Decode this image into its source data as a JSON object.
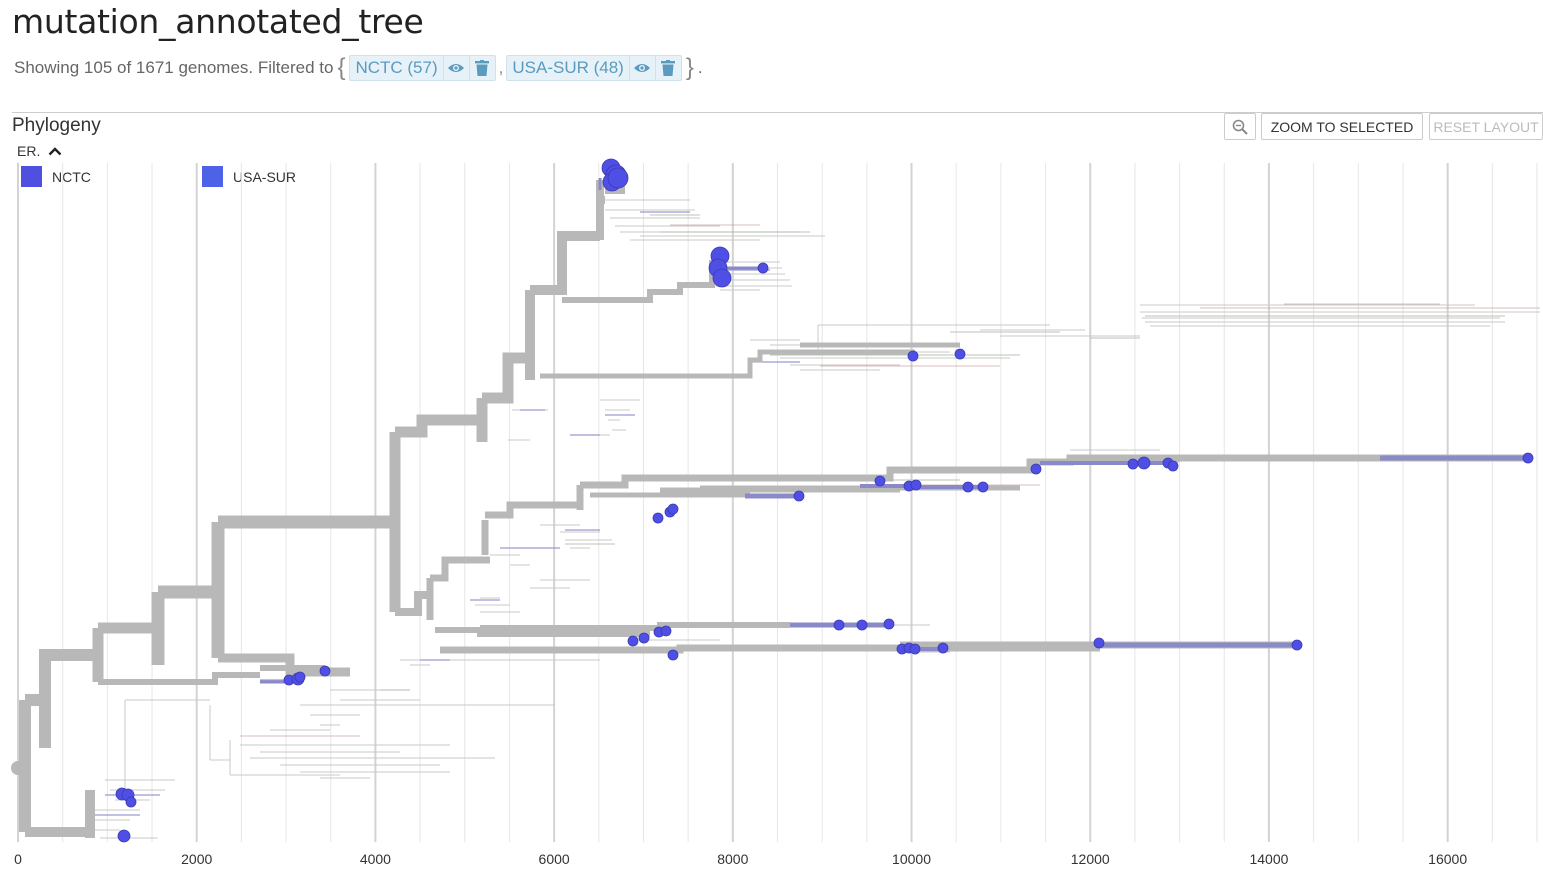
{
  "page": {
    "title": "mutation_annotated_tree"
  },
  "filter": {
    "summary": "Showing 105 of 1671 genomes. Filtered to",
    "open_brace": "{",
    "close_brace": "}",
    "separator": ",",
    "end_punct": ".",
    "chips": [
      {
        "label": "NCTC (57)"
      },
      {
        "label": "USA-SUR (48)"
      }
    ]
  },
  "panel": {
    "title": "Phylogeny",
    "legend_title": "ER.",
    "legend": [
      {
        "label": "NCTC",
        "color": "#5050e0"
      },
      {
        "label": "USA-SUR",
        "color": "#4e62e8"
      }
    ]
  },
  "toolbar": {
    "zoom_to_selected": "ZOOM TO SELECTED",
    "reset_layout": "RESET LAYOUT"
  },
  "colors": {
    "branch": "#b8b8b8",
    "highlight": "#8a8ac8",
    "tip": "#4f4fe6",
    "grid": "#e6e6e6",
    "grid_major": "#d3d3d3",
    "chip_text": "#5b9bc0"
  },
  "icons": {
    "eye": "eye-icon",
    "trash": "trash-icon",
    "zoom": "magnifier-icon",
    "collapse": "chevron-up-icon"
  },
  "chart_data": {
    "type": "tree",
    "x_axis": {
      "range": [
        0,
        17000
      ],
      "ticks": [
        0,
        2000,
        4000,
        6000,
        8000,
        10000,
        12000,
        14000,
        16000
      ],
      "tick_labels": [
        "0",
        "2000",
        "4000",
        "6000",
        "8000",
        "10000",
        "12000",
        "14000",
        "16000"
      ]
    },
    "highlighted_tips_x": [
      6650,
      6700,
      7850,
      7900,
      8350,
      10000,
      10550,
      11400,
      12450,
      12600,
      12900,
      16900,
      9650,
      10000,
      10100,
      10700,
      10850,
      8750,
      7150,
      7300,
      6750,
      6950,
      7200,
      7300,
      9150,
      9450,
      9750,
      9900,
      9950,
      10050,
      10350,
      12100,
      14300,
      7350,
      3450,
      3050,
      3150,
      1200,
      1250,
      1300
    ]
  }
}
